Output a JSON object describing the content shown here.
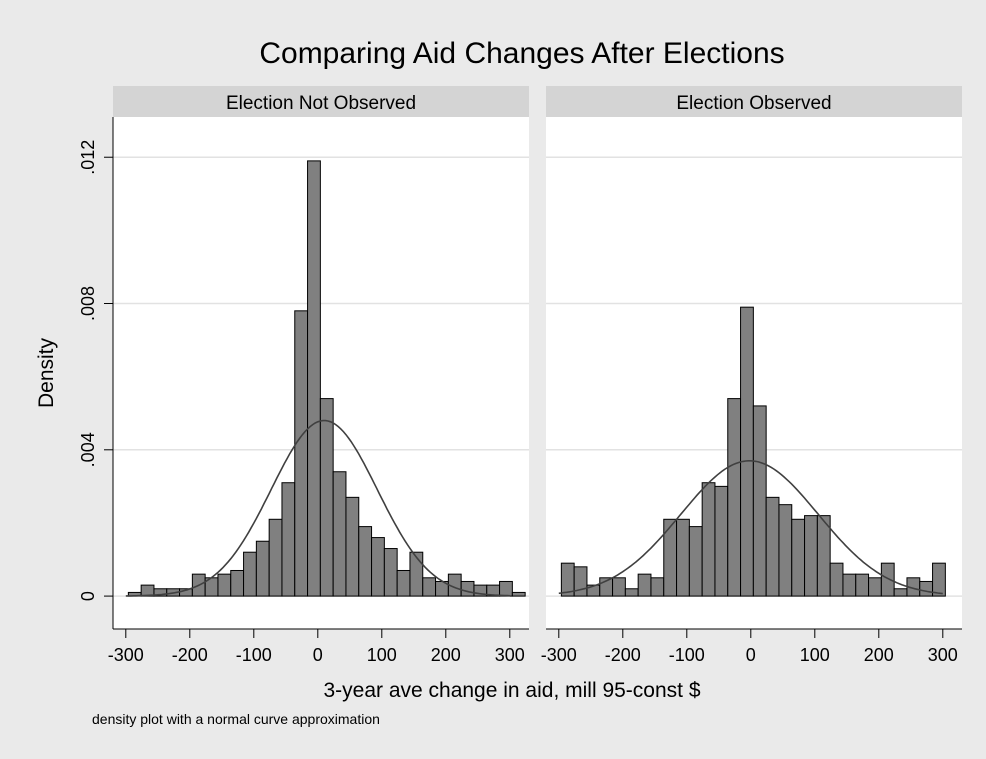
{
  "chart_data": {
    "type": "bar",
    "title": "Comparing Aid Changes After Elections",
    "xlabel": "3-year ave change in aid, mill 95-const $",
    "ylabel": "Density",
    "note": "density plot with a normal curve approximation",
    "xlim": [
      -320,
      330
    ],
    "ylim": [
      -0.0009,
      0.0131
    ],
    "x_ticks": [
      -300,
      -200,
      -100,
      0,
      100,
      200,
      300
    ],
    "x_tick_labels": [
      "-300",
      "-200",
      "-100",
      "0",
      "100",
      "200",
      "300"
    ],
    "y_ticks": [
      0,
      0.004,
      0.008,
      0.012
    ],
    "y_tick_labels": [
      "0",
      ".004",
      ".008",
      ".012"
    ],
    "bin_start": -296,
    "bin_width": 20,
    "panels": [
      {
        "name": "Election Not Observed",
        "densities": [
          0.0001,
          0.0003,
          0.0002,
          0.0002,
          0.0002,
          0.0006,
          0.0005,
          0.0006,
          0.0007,
          0.0012,
          0.0015,
          0.0021,
          0.0031,
          0.0078,
          0.0119,
          0.0054,
          0.0034,
          0.0027,
          0.0019,
          0.0016,
          0.0013,
          0.0007,
          0.0012,
          0.0005,
          0.0004,
          0.0006,
          0.0004,
          0.0003,
          0.0003,
          0.0004,
          0.0001
        ],
        "normal_curve": {
          "mean": 10,
          "sd": 83,
          "peak": 0.0048
        }
      },
      {
        "name": "Election Observed",
        "densities": [
          0.0009,
          0.0008,
          0.0003,
          0.0005,
          0.0005,
          0.0002,
          0.0006,
          0.0005,
          0.0021,
          0.0021,
          0.0019,
          0.0031,
          0.003,
          0.0054,
          0.0079,
          0.0052,
          0.0027,
          0.0025,
          0.0021,
          0.0022,
          0.0022,
          0.0009,
          0.0006,
          0.0006,
          0.0005,
          0.0009,
          0.0002,
          0.0005,
          0.0004,
          0.0009
        ],
        "normal_curve": {
          "mean": -2,
          "sd": 107,
          "peak": 0.0037
        }
      }
    ],
    "grid": true,
    "colors": {
      "bar_fill": "#808080",
      "bar_stroke": "#000000",
      "curve": "#404040",
      "strip": "#d4d4d4",
      "plot_bg": "#ffffff",
      "figure_bg": "#eaeaea",
      "grid": "#e2e2e2"
    }
  }
}
